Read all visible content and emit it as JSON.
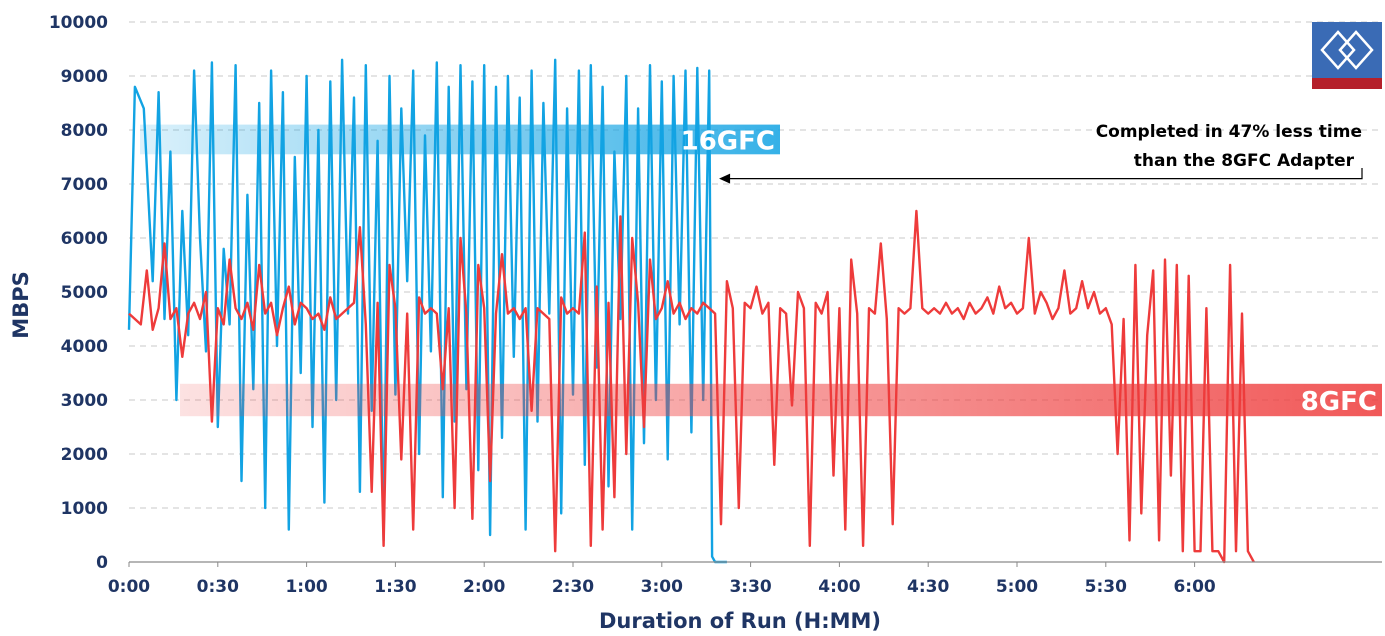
{
  "chart_data": {
    "type": "line",
    "title": "",
    "xlabel": "Duration of Run (H:MM)",
    "ylabel": "MBPS",
    "ylim": [
      0,
      10000
    ],
    "xlim_minutes": [
      0,
      380
    ],
    "y_ticks": [
      "0",
      "1000",
      "2000",
      "3000",
      "4000",
      "5000",
      "6000",
      "7000",
      "8000",
      "9000",
      "10000"
    ],
    "x_ticks": [
      {
        "label": "0:00",
        "minutes": 0
      },
      {
        "label": "0:30",
        "minutes": 30
      },
      {
        "label": "1:00",
        "minutes": 60
      },
      {
        "label": "1:30",
        "minutes": 90
      },
      {
        "label": "2:00",
        "minutes": 120
      },
      {
        "label": "2:30",
        "minutes": 150
      },
      {
        "label": "3:00",
        "minutes": 180
      },
      {
        "label": "3:30",
        "minutes": 210
      },
      {
        "label": "4:00",
        "minutes": 240
      },
      {
        "label": "4:30",
        "minutes": 270
      },
      {
        "label": "5:00",
        "minutes": 300
      },
      {
        "label": "5:30",
        "minutes": 330
      },
      {
        "label": "6:00",
        "minutes": 360
      }
    ],
    "grid": true,
    "series": [
      {
        "name": "16GFC",
        "color": "#12a3e3",
        "band": {
          "from": 7550,
          "to": 8100
        },
        "end_minutes": 198,
        "points": [
          [
            0,
            4300
          ],
          [
            2,
            8800
          ],
          [
            5,
            8400
          ],
          [
            8,
            5200
          ],
          [
            10,
            8700
          ],
          [
            12,
            4500
          ],
          [
            14,
            7600
          ],
          [
            16,
            3000
          ],
          [
            18,
            6500
          ],
          [
            20,
            4200
          ],
          [
            22,
            9100
          ],
          [
            24,
            6000
          ],
          [
            26,
            3900
          ],
          [
            28,
            9250
          ],
          [
            30,
            2500
          ],
          [
            32,
            5800
          ],
          [
            34,
            4400
          ],
          [
            36,
            9200
          ],
          [
            38,
            1500
          ],
          [
            40,
            6800
          ],
          [
            42,
            3200
          ],
          [
            44,
            8500
          ],
          [
            46,
            1000
          ],
          [
            48,
            9100
          ],
          [
            50,
            4000
          ],
          [
            52,
            8700
          ],
          [
            54,
            600
          ],
          [
            56,
            7500
          ],
          [
            58,
            3500
          ],
          [
            60,
            9000
          ],
          [
            62,
            2500
          ],
          [
            64,
            8000
          ],
          [
            66,
            1100
          ],
          [
            68,
            8900
          ],
          [
            70,
            3000
          ],
          [
            72,
            9300
          ],
          [
            74,
            4600
          ],
          [
            76,
            8600
          ],
          [
            78,
            1300
          ],
          [
            80,
            9200
          ],
          [
            82,
            2800
          ],
          [
            84,
            7800
          ],
          [
            86,
            400
          ],
          [
            88,
            9000
          ],
          [
            90,
            3100
          ],
          [
            92,
            8400
          ],
          [
            94,
            5200
          ],
          [
            96,
            9100
          ],
          [
            98,
            2000
          ],
          [
            100,
            7900
          ],
          [
            102,
            3900
          ],
          [
            104,
            9250
          ],
          [
            106,
            1200
          ],
          [
            108,
            8800
          ],
          [
            110,
            2600
          ],
          [
            112,
            9200
          ],
          [
            114,
            3200
          ],
          [
            116,
            8900
          ],
          [
            118,
            1700
          ],
          [
            120,
            9200
          ],
          [
            122,
            500
          ],
          [
            124,
            8800
          ],
          [
            126,
            2300
          ],
          [
            128,
            9000
          ],
          [
            130,
            3800
          ],
          [
            132,
            8600
          ],
          [
            134,
            600
          ],
          [
            136,
            9100
          ],
          [
            138,
            2600
          ],
          [
            140,
            8500
          ],
          [
            142,
            4600
          ],
          [
            144,
            9300
          ],
          [
            146,
            900
          ],
          [
            148,
            8400
          ],
          [
            150,
            3100
          ],
          [
            152,
            9100
          ],
          [
            154,
            1800
          ],
          [
            156,
            9200
          ],
          [
            158,
            3600
          ],
          [
            160,
            8800
          ],
          [
            162,
            1400
          ],
          [
            164,
            7600
          ],
          [
            166,
            4500
          ],
          [
            168,
            9000
          ],
          [
            170,
            600
          ],
          [
            172,
            8400
          ],
          [
            174,
            2200
          ],
          [
            176,
            9200
          ],
          [
            178,
            3000
          ],
          [
            180,
            8900
          ],
          [
            182,
            1900
          ],
          [
            184,
            9000
          ],
          [
            186,
            4400
          ],
          [
            188,
            9100
          ],
          [
            190,
            2400
          ],
          [
            192,
            9150
          ],
          [
            194,
            3000
          ],
          [
            196,
            9100
          ],
          [
            197,
            100
          ],
          [
            198,
            0
          ],
          [
            202,
            0
          ]
        ]
      },
      {
        "name": "8GFC",
        "color": "#ee3b3b",
        "band": {
          "from": 2700,
          "to": 3300
        },
        "end_minutes": 380,
        "points": [
          [
            0,
            4600
          ],
          [
            4,
            4400
          ],
          [
            6,
            5400
          ],
          [
            8,
            4300
          ],
          [
            10,
            4700
          ],
          [
            12,
            5900
          ],
          [
            14,
            4500
          ],
          [
            16,
            4700
          ],
          [
            18,
            3800
          ],
          [
            20,
            4600
          ],
          [
            22,
            4800
          ],
          [
            24,
            4500
          ],
          [
            26,
            5000
          ],
          [
            28,
            2600
          ],
          [
            30,
            4700
          ],
          [
            32,
            4400
          ],
          [
            34,
            5600
          ],
          [
            36,
            4700
          ],
          [
            38,
            4500
          ],
          [
            40,
            4800
          ],
          [
            42,
            4300
          ],
          [
            44,
            5500
          ],
          [
            46,
            4600
          ],
          [
            48,
            4800
          ],
          [
            50,
            4200
          ],
          [
            52,
            4700
          ],
          [
            54,
            5100
          ],
          [
            56,
            4400
          ],
          [
            58,
            4800
          ],
          [
            60,
            4700
          ],
          [
            62,
            4500
          ],
          [
            64,
            4600
          ],
          [
            66,
            4300
          ],
          [
            68,
            4900
          ],
          [
            70,
            4500
          ],
          [
            72,
            4600
          ],
          [
            74,
            4700
          ],
          [
            76,
            4800
          ],
          [
            78,
            6200
          ],
          [
            80,
            4400
          ],
          [
            82,
            1300
          ],
          [
            84,
            4800
          ],
          [
            86,
            300
          ],
          [
            88,
            5500
          ],
          [
            90,
            4700
          ],
          [
            92,
            1900
          ],
          [
            94,
            4600
          ],
          [
            96,
            600
          ],
          [
            98,
            4900
          ],
          [
            100,
            4600
          ],
          [
            102,
            4700
          ],
          [
            104,
            4600
          ],
          [
            106,
            3200
          ],
          [
            108,
            4700
          ],
          [
            110,
            1000
          ],
          [
            112,
            6000
          ],
          [
            114,
            4600
          ],
          [
            116,
            800
          ],
          [
            118,
            5500
          ],
          [
            120,
            4700
          ],
          [
            122,
            1500
          ],
          [
            124,
            4600
          ],
          [
            126,
            5700
          ],
          [
            128,
            4600
          ],
          [
            130,
            4700
          ],
          [
            132,
            4500
          ],
          [
            134,
            4700
          ],
          [
            136,
            2800
          ],
          [
            138,
            4700
          ],
          [
            140,
            4600
          ],
          [
            142,
            4500
          ],
          [
            144,
            200
          ],
          [
            146,
            4900
          ],
          [
            148,
            4600
          ],
          [
            150,
            4700
          ],
          [
            152,
            4600
          ],
          [
            154,
            6100
          ],
          [
            156,
            300
          ],
          [
            158,
            5100
          ],
          [
            160,
            600
          ],
          [
            162,
            4800
          ],
          [
            164,
            1200
          ],
          [
            166,
            6400
          ],
          [
            168,
            2000
          ],
          [
            170,
            6000
          ],
          [
            172,
            4800
          ],
          [
            174,
            2500
          ],
          [
            176,
            5600
          ],
          [
            178,
            4500
          ],
          [
            180,
            4700
          ],
          [
            182,
            5200
          ],
          [
            184,
            4600
          ],
          [
            186,
            4800
          ],
          [
            188,
            4500
          ],
          [
            190,
            4700
          ],
          [
            192,
            4600
          ],
          [
            194,
            4800
          ],
          [
            196,
            4700
          ],
          [
            198,
            4600
          ],
          [
            200,
            700
          ],
          [
            202,
            5200
          ],
          [
            204,
            4700
          ],
          [
            206,
            1000
          ],
          [
            208,
            4800
          ],
          [
            210,
            4700
          ],
          [
            212,
            5100
          ],
          [
            214,
            4600
          ],
          [
            216,
            4800
          ],
          [
            218,
            1800
          ],
          [
            220,
            4700
          ],
          [
            222,
            4600
          ],
          [
            224,
            2900
          ],
          [
            226,
            5000
          ],
          [
            228,
            4700
          ],
          [
            230,
            300
          ],
          [
            232,
            4800
          ],
          [
            234,
            4600
          ],
          [
            236,
            5000
          ],
          [
            238,
            1600
          ],
          [
            240,
            4700
          ],
          [
            242,
            600
          ],
          [
            244,
            5600
          ],
          [
            246,
            4600
          ],
          [
            248,
            300
          ],
          [
            250,
            4700
          ],
          [
            252,
            4600
          ],
          [
            254,
            5900
          ],
          [
            256,
            4500
          ],
          [
            258,
            700
          ],
          [
            260,
            4700
          ],
          [
            262,
            4600
          ],
          [
            264,
            4700
          ],
          [
            266,
            6500
          ],
          [
            268,
            4700
          ],
          [
            270,
            4600
          ],
          [
            272,
            4700
          ],
          [
            274,
            4600
          ],
          [
            276,
            4800
          ],
          [
            278,
            4600
          ],
          [
            280,
            4700
          ],
          [
            282,
            4500
          ],
          [
            284,
            4800
          ],
          [
            286,
            4600
          ],
          [
            288,
            4700
          ],
          [
            290,
            4900
          ],
          [
            292,
            4600
          ],
          [
            294,
            5100
          ],
          [
            296,
            4700
          ],
          [
            298,
            4800
          ],
          [
            300,
            4600
          ],
          [
            302,
            4700
          ],
          [
            304,
            6000
          ],
          [
            306,
            4600
          ],
          [
            308,
            5000
          ],
          [
            310,
            4800
          ],
          [
            312,
            4500
          ],
          [
            314,
            4700
          ],
          [
            316,
            5400
          ],
          [
            318,
            4600
          ],
          [
            320,
            4700
          ],
          [
            322,
            5200
          ],
          [
            324,
            4700
          ],
          [
            326,
            5000
          ],
          [
            328,
            4600
          ],
          [
            330,
            4700
          ],
          [
            332,
            4400
          ],
          [
            334,
            2000
          ],
          [
            336,
            4500
          ],
          [
            338,
            400
          ],
          [
            340,
            5500
          ],
          [
            342,
            900
          ],
          [
            344,
            4200
          ],
          [
            346,
            5400
          ],
          [
            348,
            400
          ],
          [
            350,
            5600
          ],
          [
            352,
            1600
          ],
          [
            354,
            5500
          ],
          [
            356,
            200
          ],
          [
            358,
            5300
          ],
          [
            360,
            200
          ],
          [
            362,
            200
          ],
          [
            364,
            4700
          ],
          [
            366,
            200
          ],
          [
            368,
            200
          ],
          [
            370,
            0
          ],
          [
            372,
            5500
          ],
          [
            374,
            200
          ],
          [
            376,
            4600
          ],
          [
            378,
            200
          ],
          [
            380,
            0
          ]
        ]
      }
    ],
    "annotation": {
      "lines": [
        "Completed in 47% less time",
        "than the 8GFC Adapter"
      ],
      "points_to_minutes": 198,
      "points_to_value": 7100
    },
    "logo": {
      "colors": [
        "#3a6bb5",
        "#b5202b",
        "#ffffff"
      ]
    }
  }
}
